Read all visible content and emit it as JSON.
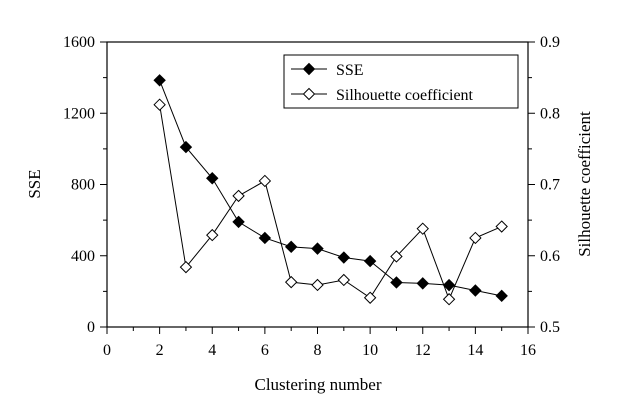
{
  "chart_data": {
    "type": "line",
    "xlabel": "Clustering number",
    "ylabel": "SSE",
    "y2label": "Silhouette coefficient",
    "xlim": [
      0,
      16
    ],
    "ylim": [
      0,
      1600
    ],
    "y2lim": [
      0.5,
      0.9
    ],
    "xticks": [
      "0",
      "2",
      "4",
      "6",
      "8",
      "10",
      "12",
      "14",
      "16"
    ],
    "yticks": [
      "0",
      "400",
      "800",
      "1200",
      "1600"
    ],
    "y2ticks": [
      "0.5",
      "0.6",
      "0.7",
      "0.8",
      "0.9"
    ],
    "grid": false,
    "legend_position": "top-right",
    "x": [
      2,
      3,
      4,
      5,
      6,
      7,
      8,
      9,
      10,
      11,
      12,
      13,
      14,
      15
    ],
    "series": [
      {
        "name": "SSE",
        "axis": "left",
        "marker": "filled-diamond",
        "values": [
          1385,
          1010,
          835,
          590,
          500,
          450,
          440,
          390,
          370,
          250,
          245,
          235,
          205,
          175
        ]
      },
      {
        "name": "Silhouette coefficient",
        "axis": "right",
        "marker": "open-diamond",
        "values": [
          0.812,
          0.584,
          0.629,
          0.684,
          0.705,
          0.563,
          0.559,
          0.566,
          0.541,
          0.599,
          0.638,
          0.539,
          0.625,
          0.641
        ]
      }
    ]
  }
}
